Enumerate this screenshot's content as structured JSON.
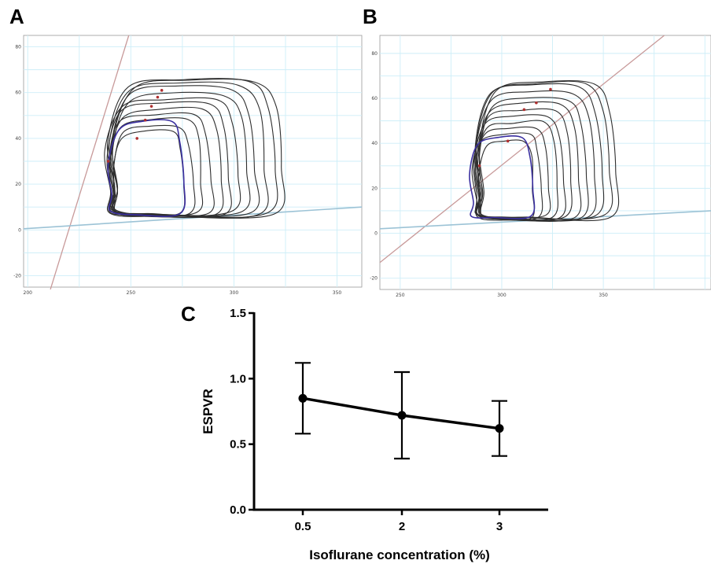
{
  "panels": {
    "a_label": "A",
    "b_label": "B",
    "c_label": "C"
  },
  "colors": {
    "grid": "#cdeef8",
    "loop": "#2e2e2e",
    "highlight_loop": "#3a2fa0",
    "espvr_line": "#c89a9a",
    "edpvr_line": "#9cc3d6",
    "marker": "#b03030",
    "axis_c": "#000000"
  },
  "chart_data": [
    {
      "panel": "A",
      "type": "line",
      "title": "",
      "xlabel": "",
      "ylabel": "",
      "xlim": [
        198,
        362
      ],
      "ylim": [
        -25,
        85
      ],
      "x_ticks": [
        200,
        250,
        300,
        350
      ],
      "y_ticks": [
        -20,
        0,
        20,
        40,
        60,
        80
      ],
      "grid": true,
      "espvr_endpoints": [
        [
          211,
          -26
        ],
        [
          249,
          85
        ]
      ],
      "edpvr_endpoints": [
        [
          198,
          0.5
        ],
        [
          362,
          10
        ]
      ],
      "end_systolic_points": [
        [
          239,
          30
        ],
        [
          253,
          40
        ],
        [
          257,
          48
        ],
        [
          260,
          54
        ],
        [
          263,
          58
        ],
        [
          265,
          61
        ]
      ],
      "loops": {
        "lv_min_range": [
          238,
          242
        ],
        "lv_max_range": [
          275,
          322
        ],
        "pressure_peak_range": [
          42,
          65
        ],
        "highlighted_loop": {
          "vol_min": 240,
          "vol_max": 275,
          "p_min": 7,
          "p_max": 47
        }
      }
    },
    {
      "panel": "B",
      "type": "line",
      "title": "",
      "xlabel": "",
      "ylabel": "",
      "xlim": [
        240,
        403
      ],
      "ylim": [
        -25,
        88
      ],
      "x_ticks": [
        250,
        300,
        350
      ],
      "y_ticks": [
        -20,
        0,
        20,
        40,
        60,
        80
      ],
      "grid": true,
      "espvr_endpoints": [
        [
          240,
          -13
        ],
        [
          380,
          88
        ]
      ],
      "edpvr_endpoints": [
        [
          240,
          2
        ],
        [
          403,
          10
        ]
      ],
      "end_systolic_points": [
        [
          289,
          30
        ],
        [
          303,
          41
        ],
        [
          311,
          55
        ],
        [
          317,
          58
        ],
        [
          324,
          64
        ]
      ],
      "loops": {
        "lv_min_range": [
          285,
          290
        ],
        "lv_max_range": [
          315,
          355
        ],
        "pressure_peak_range": [
          40,
          66
        ],
        "highlighted_loop": {
          "vol_min": 285,
          "vol_max": 315,
          "p_min": 7,
          "p_max": 42
        }
      }
    },
    {
      "panel": "C",
      "type": "line",
      "title": "",
      "xlabel": "Isoflurane concentration (%)",
      "ylabel": "ESPVR",
      "categories": [
        "0.5",
        "2",
        "3"
      ],
      "ylim": [
        0.0,
        1.5
      ],
      "y_ticks": [
        "0.0",
        "0.5",
        "1.0",
        "1.5"
      ],
      "grid": false,
      "series": [
        {
          "values": [
            0.85,
            0.72,
            0.62
          ],
          "error": [
            0.27,
            0.33,
            0.21
          ]
        }
      ]
    }
  ]
}
